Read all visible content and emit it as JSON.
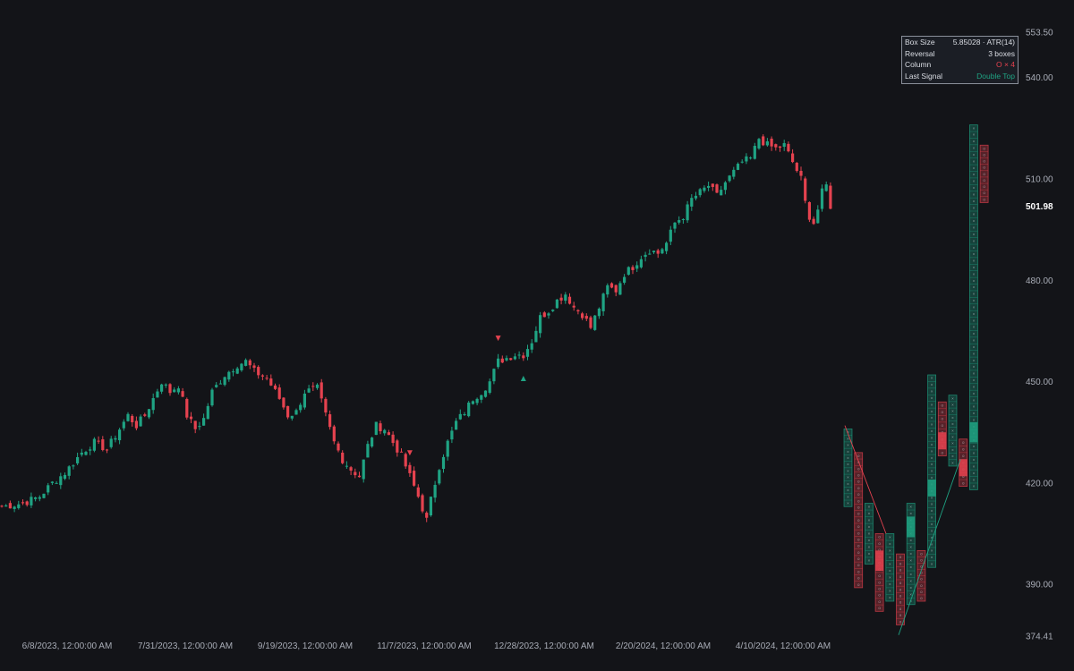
{
  "info_panel": {
    "rows": [
      {
        "label": "Box Size",
        "value": "5.85028 · ATR(14)",
        "tone": "neutral"
      },
      {
        "label": "Reversal",
        "value": "3 boxes",
        "tone": "neutral"
      },
      {
        "label": "Column",
        "value": "O × 4",
        "tone": "red"
      },
      {
        "label": "Last Signal",
        "value": "Double Top",
        "tone": "green"
      }
    ]
  },
  "colors": {
    "background": "#131418",
    "up": "#1fa383",
    "down": "#e5424f",
    "axis_text": "#a8acb6"
  },
  "chart_data": [
    {
      "type": "candlestick",
      "title": "",
      "xlabel": "",
      "ylabel": "",
      "ylim": [
        374.41,
        553.5
      ],
      "y_ticks": [
        "553.50",
        "540.00",
        "510.00",
        "480.00",
        "450.00",
        "420.00",
        "390.00",
        "374.41"
      ],
      "last_price": "501.98",
      "x_ticks": [
        "6/8/2023, 12:00:00 AM",
        "7/31/2023, 12:00:00 AM",
        "9/19/2023, 12:00:00 AM",
        "11/7/2023, 12:00:00 AM",
        "12/28/2023, 12:00:00 AM",
        "2/20/2024, 12:00:00 AM",
        "4/10/2024, 12:00:00 AM"
      ],
      "close_path": [
        [
          0,
          413
        ],
        [
          5,
          414
        ],
        [
          9,
          416
        ],
        [
          12,
          420
        ],
        [
          15,
          423
        ],
        [
          19,
          429
        ],
        [
          22,
          432
        ],
        [
          25,
          430
        ],
        [
          28,
          436
        ],
        [
          30,
          440
        ],
        [
          32,
          437
        ],
        [
          34,
          440
        ],
        [
          36,
          445
        ],
        [
          38,
          450
        ],
        [
          40,
          447
        ],
        [
          42,
          449
        ],
        [
          44,
          440
        ],
        [
          46,
          436
        ],
        [
          48,
          439
        ],
        [
          50,
          447
        ],
        [
          53,
          452
        ],
        [
          56,
          455
        ],
        [
          58,
          456
        ],
        [
          60,
          453
        ],
        [
          63,
          451
        ],
        [
          66,
          445
        ],
        [
          68,
          440
        ],
        [
          70,
          441
        ],
        [
          72,
          447
        ],
        [
          75,
          448
        ],
        [
          77,
          440
        ],
        [
          79,
          432
        ],
        [
          81,
          427
        ],
        [
          83,
          424
        ],
        [
          85,
          422
        ],
        [
          87,
          431
        ],
        [
          89,
          437
        ],
        [
          91,
          436
        ],
        [
          93,
          432
        ],
        [
          95,
          428
        ],
        [
          97,
          422
        ],
        [
          99,
          416
        ],
        [
          101,
          409
        ],
        [
          102,
          415
        ],
        [
          104,
          425
        ],
        [
          106,
          432
        ],
        [
          108,
          438
        ],
        [
          110,
          441
        ],
        [
          112,
          445
        ],
        [
          114,
          447
        ],
        [
          116,
          450
        ],
        [
          118,
          456
        ],
        [
          120,
          457
        ],
        [
          122,
          458
        ],
        [
          124,
          458
        ],
        [
          126,
          462
        ],
        [
          128,
          469
        ],
        [
          130,
          471
        ],
        [
          132,
          474
        ],
        [
          134,
          476
        ],
        [
          136,
          472
        ],
        [
          138,
          470
        ],
        [
          140,
          466
        ],
        [
          142,
          472
        ],
        [
          144,
          478
        ],
        [
          146,
          477
        ],
        [
          148,
          482
        ],
        [
          150,
          484
        ],
        [
          152,
          487
        ],
        [
          154,
          489
        ],
        [
          156,
          488
        ],
        [
          158,
          491
        ],
        [
          160,
          497
        ],
        [
          162,
          499
        ],
        [
          164,
          504
        ],
        [
          166,
          506
        ],
        [
          168,
          508
        ],
        [
          170,
          505
        ],
        [
          172,
          509
        ],
        [
          174,
          512
        ],
        [
          176,
          515
        ],
        [
          178,
          516
        ],
        [
          180,
          522
        ],
        [
          182,
          520
        ],
        [
          184,
          519
        ],
        [
          186,
          520
        ],
        [
          188,
          515
        ],
        [
          190,
          510
        ],
        [
          191,
          503
        ],
        [
          192,
          499
        ],
        [
          193,
          497
        ],
        [
          194,
          501
        ],
        [
          195,
          506
        ],
        [
          196,
          508
        ],
        [
          197,
          502
        ]
      ],
      "markers": [
        {
          "bar": 97,
          "type": "sell"
        },
        {
          "bar": 118,
          "type": "sell"
        },
        {
          "bar": 124,
          "type": "buy"
        }
      ]
    },
    {
      "type": "point-and-figure",
      "box_size": 5.85028,
      "reversal": 3,
      "columns": [
        {
          "kind": "X",
          "low": 413.0,
          "high": 436.0
        },
        {
          "kind": "O",
          "low": 389.0,
          "high": 429.0
        },
        {
          "kind": "X",
          "low": 396.0,
          "high": 414.0
        },
        {
          "kind": "O",
          "low": 382.0,
          "high": 405.0
        },
        {
          "kind": "X",
          "low": 385.0,
          "high": 405.0
        },
        {
          "kind": "O",
          "low": 378.0,
          "high": 399.0
        },
        {
          "kind": "X",
          "low": 384.0,
          "high": 414.0
        },
        {
          "kind": "O",
          "low": 385.0,
          "high": 400.0
        },
        {
          "kind": "X",
          "low": 395.0,
          "high": 452.0
        },
        {
          "kind": "O",
          "low": 428.0,
          "high": 444.0
        },
        {
          "kind": "X",
          "low": 425.0,
          "high": 446.0
        },
        {
          "kind": "O",
          "low": 419.0,
          "high": 433.0
        },
        {
          "kind": "X",
          "low": 418.0,
          "high": 526.0
        },
        {
          "kind": "O",
          "low": 503.0,
          "high": 520.0
        }
      ]
    }
  ]
}
